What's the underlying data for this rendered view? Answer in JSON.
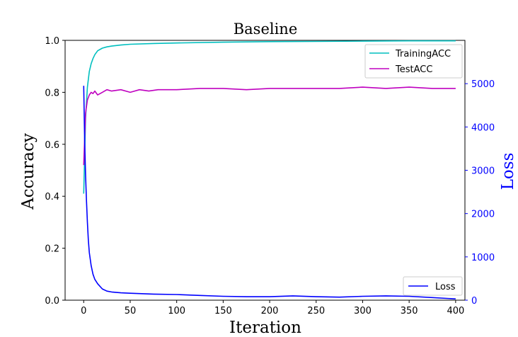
{
  "chart_data": {
    "type": "line",
    "title": "Baseline",
    "xlabel": "Iteration",
    "ylabel_left": "Accuracy",
    "ylabel_right": "Loss",
    "xlim": [
      -20,
      410
    ],
    "ylim_left": [
      0.0,
      1.0
    ],
    "ylim_right": [
      0,
      6000
    ],
    "x_ticks": [
      "0",
      "50",
      "100",
      "150",
      "200",
      "250",
      "300",
      "350",
      "400"
    ],
    "y_ticks_left": [
      "0.0",
      "0.2",
      "0.4",
      "0.6",
      "0.8",
      "1.0"
    ],
    "y_ticks_right": [
      "0",
      "1000",
      "2000",
      "3000",
      "4000",
      "5000"
    ],
    "grid": false,
    "legend_accuracy": {
      "placement": "top-right",
      "entries": [
        "TrainingACC",
        "TestACC"
      ]
    },
    "legend_loss": {
      "placement": "bottom-right",
      "entries": [
        "Loss"
      ]
    },
    "series": [
      {
        "name": "TrainingACC",
        "axis": "left",
        "color": "#00bfbf",
        "x": [
          0,
          2,
          4,
          6,
          8,
          10,
          12,
          15,
          20,
          25,
          30,
          40,
          50,
          75,
          100,
          150,
          200,
          250,
          300,
          350,
          400
        ],
        "values": [
          0.41,
          0.7,
          0.82,
          0.88,
          0.91,
          0.93,
          0.945,
          0.96,
          0.97,
          0.975,
          0.978,
          0.982,
          0.985,
          0.988,
          0.99,
          0.993,
          0.995,
          0.996,
          0.997,
          0.998,
          0.998
        ]
      },
      {
        "name": "TestACC",
        "axis": "left",
        "color": "#bf00bf",
        "x": [
          0,
          2,
          4,
          6,
          8,
          10,
          12,
          15,
          20,
          25,
          30,
          40,
          50,
          60,
          70,
          80,
          100,
          125,
          150,
          175,
          200,
          225,
          250,
          275,
          300,
          325,
          350,
          375,
          400
        ],
        "values": [
          0.52,
          0.72,
          0.77,
          0.79,
          0.8,
          0.795,
          0.805,
          0.79,
          0.8,
          0.81,
          0.805,
          0.81,
          0.8,
          0.81,
          0.805,
          0.81,
          0.81,
          0.815,
          0.815,
          0.81,
          0.815,
          0.815,
          0.815,
          0.815,
          0.82,
          0.815,
          0.82,
          0.815,
          0.815
        ]
      },
      {
        "name": "Loss",
        "axis": "right",
        "color": "#0000ff",
        "x": [
          0,
          1,
          2,
          3,
          4,
          5,
          6,
          8,
          10,
          12,
          15,
          20,
          25,
          30,
          40,
          50,
          75,
          100,
          125,
          150,
          175,
          200,
          225,
          250,
          275,
          300,
          325,
          350,
          375,
          400
        ],
        "values": [
          4950,
          3700,
          2900,
          2300,
          1800,
          1400,
          1100,
          800,
          600,
          480,
          380,
          260,
          210,
          190,
          170,
          160,
          140,
          130,
          110,
          90,
          80,
          80,
          100,
          80,
          70,
          90,
          100,
          90,
          60,
          30
        ]
      }
    ]
  }
}
